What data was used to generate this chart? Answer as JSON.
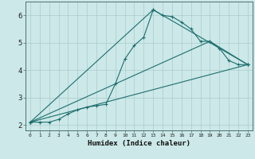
{
  "xlabel": "Humidex (Indice chaleur)",
  "background_color": "#cce8e8",
  "grid_color": "#aacccc",
  "line_color": "#1e6e6e",
  "xlim_min": -0.5,
  "xlim_max": 23.5,
  "ylim_min": 1.8,
  "ylim_max": 6.5,
  "ytick_values": [
    2,
    3,
    4,
    5,
    6
  ],
  "xtick_labels": [
    "0",
    "1",
    "2",
    "3",
    "4",
    "5",
    "6",
    "7",
    "8",
    "9",
    "10",
    "11",
    "12",
    "13",
    "14",
    "15",
    "16",
    "17",
    "18",
    "19",
    "20",
    "21",
    "22",
    "23"
  ],
  "series1_x": [
    0,
    1,
    2,
    3,
    4,
    5,
    6,
    7,
    8,
    9,
    10,
    11,
    12,
    13,
    14,
    15,
    16,
    17,
    18,
    19,
    20,
    21,
    22,
    23
  ],
  "series1_y": [
    2.1,
    2.1,
    2.1,
    2.2,
    2.4,
    2.55,
    2.65,
    2.7,
    2.75,
    3.5,
    4.4,
    4.9,
    5.2,
    6.2,
    6.0,
    5.95,
    5.75,
    5.5,
    5.05,
    5.05,
    4.8,
    4.35,
    4.2,
    4.2
  ],
  "series2_x": [
    0,
    13,
    23
  ],
  "series2_y": [
    2.1,
    6.2,
    4.2
  ],
  "series3_x": [
    0,
    19,
    23
  ],
  "series3_y": [
    2.1,
    5.05,
    4.2
  ],
  "series4_x": [
    0,
    23
  ],
  "series4_y": [
    2.1,
    4.2
  ]
}
